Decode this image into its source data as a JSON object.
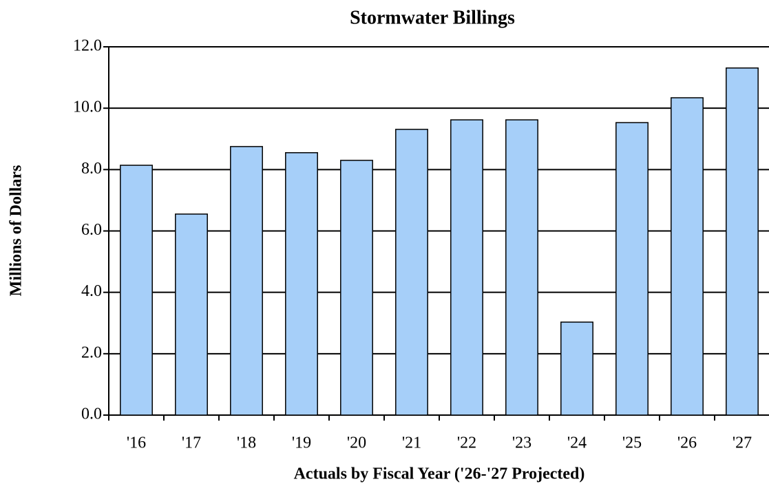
{
  "chart_data": {
    "type": "bar",
    "title": "Stormwater Billings",
    "x_label": "Actuals by Fiscal Year ('26-'27 Projected)",
    "y_label": "Millions of Dollars",
    "categories": [
      "'16",
      "'17",
      "'18",
      "'19",
      "'20",
      "'21",
      "'22",
      "'23",
      "'24",
      "'25",
      "'26",
      "'27"
    ],
    "values": [
      8.14,
      6.55,
      8.75,
      8.55,
      8.3,
      9.31,
      9.62,
      9.62,
      3.03,
      9.53,
      10.34,
      11.31
    ],
    "color": "#a6cff9",
    "ylim": [
      0,
      12
    ],
    "yticks": [
      {
        "value": 0,
        "label": "0.0"
      },
      {
        "value": 2,
        "label": "2.0"
      },
      {
        "value": 4,
        "label": "4.0"
      },
      {
        "value": 6,
        "label": "6.0"
      },
      {
        "value": 8,
        "label": "8.0"
      },
      {
        "value": 10,
        "label": "10.0"
      },
      {
        "value": 12,
        "label": "12.0"
      }
    ],
    "grid": true
  }
}
